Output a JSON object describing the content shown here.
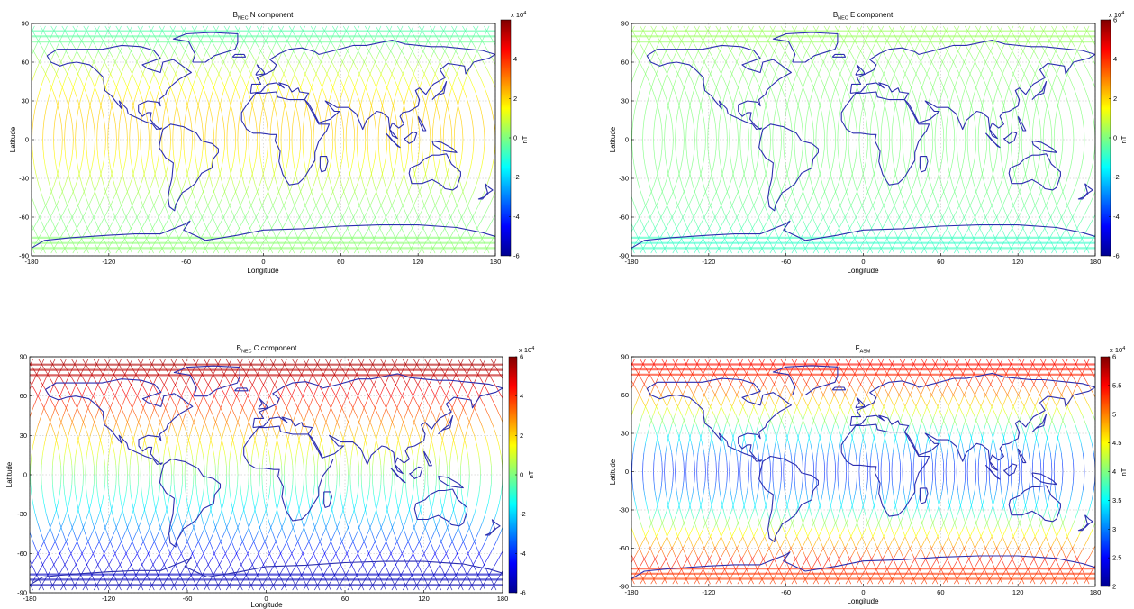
{
  "chart_data": [
    {
      "type": "scatter",
      "title": "B",
      "title_sub": "NEC",
      "title_rest": " N component",
      "xlabel": "Longitude",
      "ylabel": "Latitude",
      "xlim": [
        -180,
        180
      ],
      "ylim": [
        -90,
        90
      ],
      "xticks": [
        "-180",
        "-120",
        "-60",
        "0",
        "60",
        "120",
        "180"
      ],
      "yticks": [
        "-90",
        "-60",
        "-30",
        "0",
        "30",
        "60",
        "90"
      ],
      "colorbar": {
        "label": "nT",
        "exponent": "x 10^4",
        "exp_base": "x 10",
        "exp_pow": "4",
        "range": [
          -6,
          6
        ],
        "ticks": [
          "-6",
          "-4",
          "-2",
          "0",
          "2",
          "4"
        ]
      },
      "value_profile": [
        [
          -90,
          0.2
        ],
        [
          -80,
          0.15
        ],
        [
          -70,
          0.05
        ],
        [
          -60,
          -0.02
        ],
        [
          -45,
          0.3
        ],
        [
          -30,
          0.85
        ],
        [
          -15,
          1.5
        ],
        [
          0,
          2.0
        ],
        [
          15,
          2.1
        ],
        [
          30,
          1.9
        ],
        [
          45,
          1.3
        ],
        [
          60,
          0.55
        ],
        [
          70,
          0.05
        ],
        [
          80,
          -0.4
        ],
        [
          90,
          -0.6
        ]
      ],
      "grid": true,
      "tracks": "satellite ground tracks, pole-to-pole, colored by value"
    },
    {
      "type": "scatter",
      "title": "B",
      "title_sub": "NEC",
      "title_rest": " E component",
      "xlabel": "Longitude",
      "ylabel": "Latitude",
      "xlim": [
        -180,
        180
      ],
      "ylim": [
        -90,
        90
      ],
      "xticks": [
        "-180",
        "-120",
        "-60",
        "0",
        "60",
        "120",
        "180"
      ],
      "yticks": [
        "-90",
        "-60",
        "-30",
        "0",
        "30",
        "60",
        "90"
      ],
      "colorbar": {
        "label": "nT",
        "exponent": "x 10^4",
        "exp_base": "x 10",
        "exp_pow": "4",
        "range": [
          -6,
          6
        ],
        "ticks": [
          "-6",
          "-4",
          "-2",
          "0",
          "2",
          "4",
          "6"
        ]
      },
      "value_profile": [
        [
          -90,
          -0.6
        ],
        [
          -80,
          -0.9
        ],
        [
          -70,
          -0.6
        ],
        [
          -50,
          -0.2
        ],
        [
          -30,
          -0.05
        ],
        [
          0,
          0.0
        ],
        [
          30,
          0.05
        ],
        [
          60,
          0.15
        ],
        [
          80,
          0.35
        ],
        [
          90,
          0.4
        ]
      ],
      "grid": true,
      "tracks": "satellite ground tracks, pole-to-pole, colored by value"
    },
    {
      "type": "scatter",
      "title": "B",
      "title_sub": "NEC",
      "title_rest": " C component",
      "xlabel": "Longitude",
      "ylabel": "Latitude",
      "xlim": [
        -180,
        180
      ],
      "ylim": [
        -90,
        90
      ],
      "xticks": [
        "-180",
        "-120",
        "-60",
        "0",
        "60",
        "120",
        "180"
      ],
      "yticks": [
        "-90",
        "-60",
        "-30",
        "0",
        "30",
        "60",
        "90"
      ],
      "colorbar": {
        "label": "nT",
        "exponent": "x 10^4",
        "exp_base": "x 10",
        "exp_pow": "4",
        "range": [
          -6,
          6
        ],
        "ticks": [
          "-6",
          "-4",
          "-2",
          "0",
          "2",
          "4",
          "6"
        ]
      },
      "value_profile": [
        [
          -90,
          -5.6
        ],
        [
          -75,
          -5.2
        ],
        [
          -60,
          -4.4
        ],
        [
          -45,
          -3.2
        ],
        [
          -30,
          -2.1
        ],
        [
          -15,
          -1.1
        ],
        [
          0,
          -0.1
        ],
        [
          15,
          1.0
        ],
        [
          30,
          2.1
        ],
        [
          45,
          3.3
        ],
        [
          60,
          4.4
        ],
        [
          75,
          5.2
        ],
        [
          90,
          5.6
        ]
      ],
      "grid": true,
      "tracks": "satellite ground tracks, pole-to-pole, colored by value"
    },
    {
      "type": "scatter",
      "title": "F",
      "title_sub": "ASM",
      "title_rest": "",
      "xlabel": "Longitude",
      "ylabel": "Latitude",
      "xlim": [
        -180,
        180
      ],
      "ylim": [
        -90,
        90
      ],
      "xticks": [
        "-180",
        "-120",
        "-60",
        "0",
        "60",
        "120",
        "180"
      ],
      "yticks": [
        "-90",
        "-60",
        "-30",
        "0",
        "30",
        "60",
        "90"
      ],
      "colorbar": {
        "label": "nT",
        "exponent": "x 10^4",
        "exp_base": "x 10",
        "exp_pow": "4",
        "range": [
          2,
          6
        ],
        "ticks": [
          "2",
          "2.5",
          "3",
          "3.5",
          "4",
          "4.5",
          "5",
          "5.5",
          "6"
        ]
      },
      "value_profile": [
        [
          -90,
          5.2
        ],
        [
          -70,
          5.4
        ],
        [
          -50,
          4.6
        ],
        [
          -30,
          3.6
        ],
        [
          -10,
          2.8
        ],
        [
          0,
          2.6
        ],
        [
          10,
          2.8
        ],
        [
          30,
          3.6
        ],
        [
          50,
          4.5
        ],
        [
          70,
          5.3
        ],
        [
          90,
          5.5
        ]
      ],
      "grid": true,
      "tracks": "satellite ground tracks, pole-to-pole, colored by value"
    }
  ]
}
